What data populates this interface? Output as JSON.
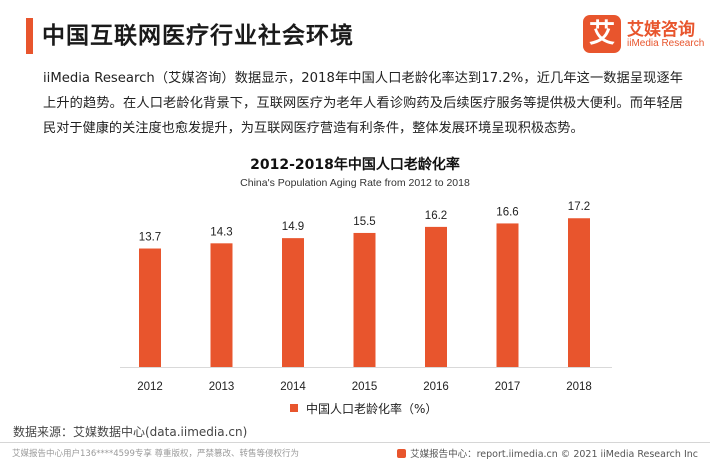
{
  "header": {
    "title": "中国互联网医疗行业社会环境"
  },
  "logo": {
    "mark": "艾",
    "cn": "艾媒咨询",
    "en": "iiMedia Research"
  },
  "intro": {
    "text": "iiMedia Research（艾媒咨询）数据显示，2018年中国人口老龄化率达到17.2%，近几年这一数据呈现逐年上升的趋势。在人口老龄化背景下，互联网医疗为老年人看诊购药及后续医疗服务等提供极大便利。而年轻居民对于健康的关注度也愈发提升，为互联网医疗营造有利条件，整体发展环境呈现积极态势。"
  },
  "chart_data": {
    "type": "bar",
    "title": "2012-2018年中国人口老龄化率",
    "subtitle": "China's Population Aging Rate from 2012 to 2018",
    "categories": [
      "2012",
      "2013",
      "2014",
      "2015",
      "2016",
      "2017",
      "2018"
    ],
    "series": [
      {
        "name": "中国人口老龄化率（%）",
        "values": [
          13.7,
          14.3,
          14.9,
          15.5,
          16.2,
          16.6,
          17.2
        ]
      }
    ],
    "ylim": [
      0,
      18.5
    ],
    "grid": false,
    "legend_position": "bottom",
    "bar_color": "#e8552d"
  },
  "source": {
    "text": "数据来源：艾媒数据中心(data.iimedia.cn)"
  },
  "footer": {
    "left": "艾媒报告中心用户136****4599专享 尊重版权，严禁篡改、转售等侵权行为",
    "right": "艾媒报告中心：report.iimedia.cn  © 2021  iiMedia Research  Inc"
  }
}
